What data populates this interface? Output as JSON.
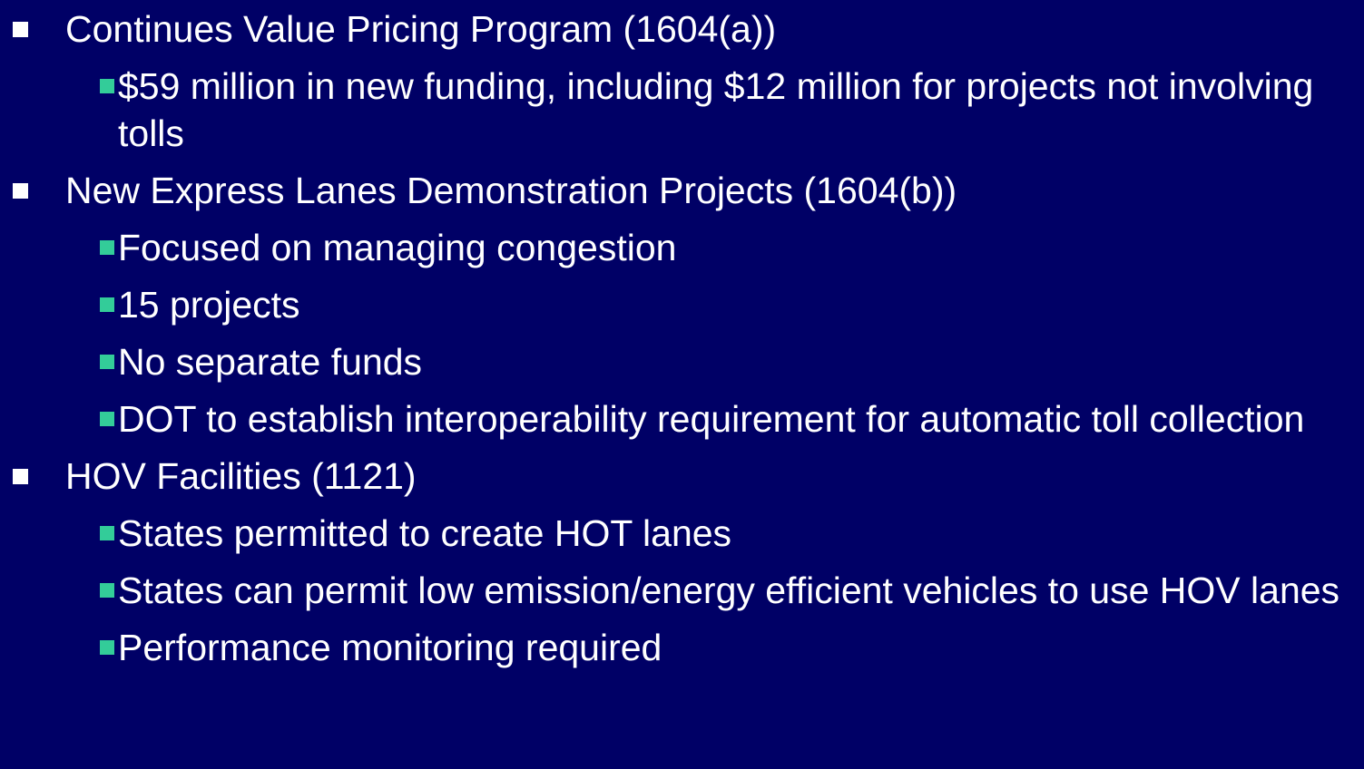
{
  "items": [
    {
      "text": "Continues Value Pricing Program (1604(a))",
      "children": [
        {
          "text": "$59 million in new funding, including $12 million for projects not involving tolls"
        }
      ]
    },
    {
      "text": "New Express Lanes Demonstration Projects (1604(b))",
      "children": [
        {
          "text": "Focused on managing congestion"
        },
        {
          "text": "15 projects"
        },
        {
          "text": "No separate funds"
        },
        {
          "text": "DOT to establish interoperability requirement for automatic toll collection"
        }
      ]
    },
    {
      "text": "HOV Facilities (1121)",
      "children": [
        {
          "text": "States permitted to create HOT lanes"
        },
        {
          "text": "States can permit low emission/energy efficient vehicles to use HOV lanes"
        },
        {
          "text": "Performance monitoring required"
        }
      ]
    }
  ]
}
